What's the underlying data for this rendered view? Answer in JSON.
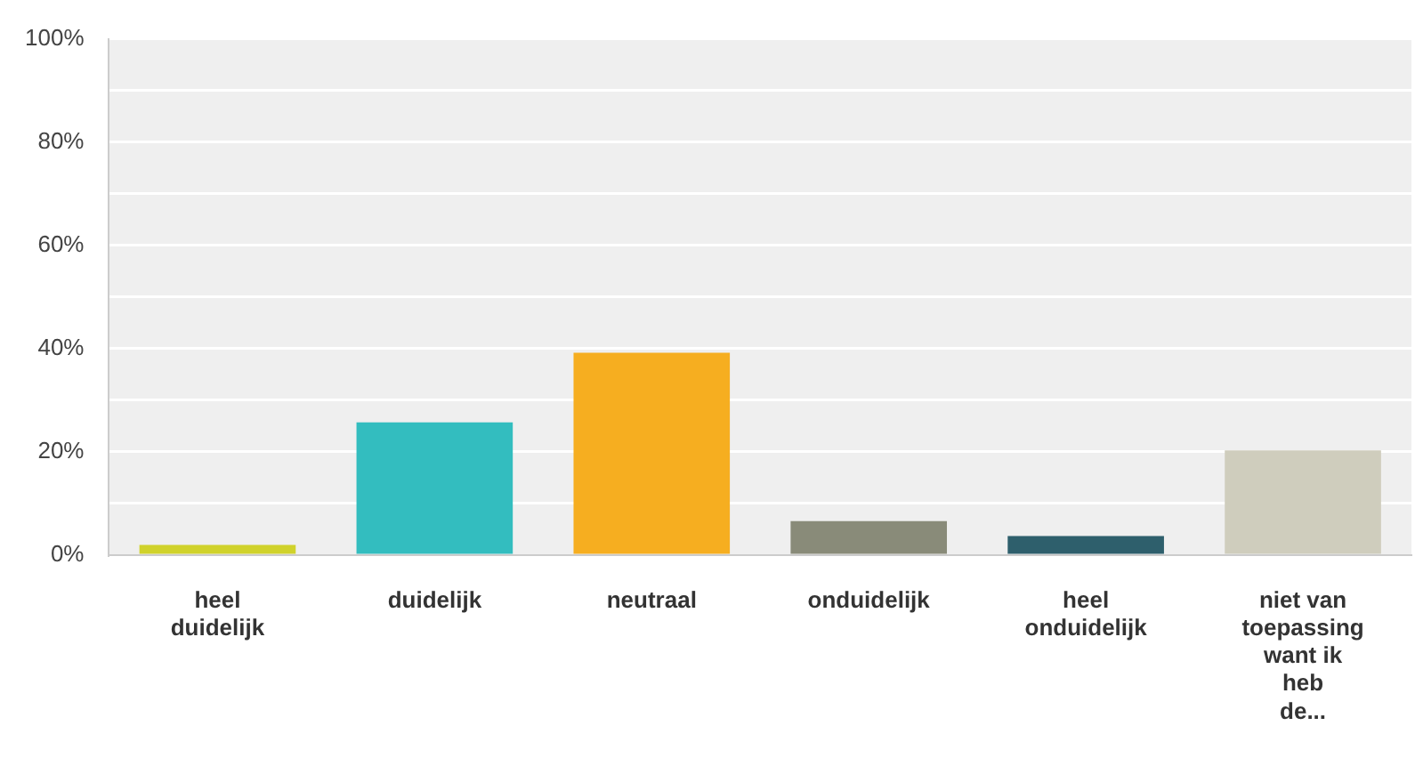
{
  "chart_data": {
    "type": "bar",
    "categories": [
      "heel duidelijk",
      "duidelijk",
      "neutraal",
      "onduidelijk",
      "heel onduidelijk",
      "niet van toepassing want ik heb de..."
    ],
    "values": [
      2.0,
      25.7,
      39.2,
      6.6,
      3.7,
      20.3
    ],
    "colors": [
      "#d0d22b",
      "#33bdbf",
      "#f6ae20",
      "#898b79",
      "#2e5f6c",
      "#cfcdbd"
    ],
    "ylim": [
      0,
      100
    ],
    "yticks": [
      {
        "value": 0,
        "label": "0%"
      },
      {
        "value": 10,
        "label": null
      },
      {
        "value": 20,
        "label": "20%"
      },
      {
        "value": 30,
        "label": null
      },
      {
        "value": 40,
        "label": "40%"
      },
      {
        "value": 50,
        "label": null
      },
      {
        "value": 60,
        "label": "60%"
      },
      {
        "value": 70,
        "label": null
      },
      {
        "value": 80,
        "label": "80%"
      },
      {
        "value": 90,
        "label": null
      },
      {
        "value": 100,
        "label": "100%"
      }
    ],
    "grid": "y",
    "legend": false
  }
}
